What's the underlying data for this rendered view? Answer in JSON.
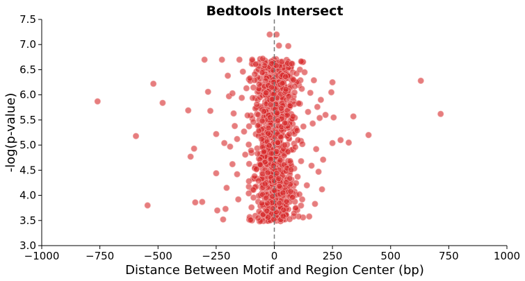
{
  "chart_data": {
    "type": "scatter",
    "title": "Bedtools Intersect",
    "xlabel": "Distance Between Motif and Region Center (bp)",
    "ylabel": "-log(p-value)",
    "xlim": [
      -1000,
      1000
    ],
    "ylim": [
      3.0,
      7.5
    ],
    "xticks": [
      -1000,
      -750,
      -500,
      -250,
      0,
      250,
      500,
      750,
      1000
    ],
    "xtick_labels": [
      "−1000",
      "−750",
      "−500",
      "−250",
      "0",
      "250",
      "500",
      "750",
      "1000"
    ],
    "yticks": [
      3.0,
      3.5,
      4.0,
      4.5,
      5.0,
      5.5,
      6.0,
      6.5,
      7.0,
      7.5
    ],
    "ytick_labels": [
      "3.0",
      "3.5",
      "4.0",
      "4.5",
      "5.0",
      "5.5",
      "6.0",
      "6.5",
      "7.0",
      "7.5"
    ],
    "reference_line": {
      "x": 0,
      "style": "dashed",
      "color": "#777777"
    },
    "grid": false,
    "marker_color": "#d62728",
    "marker_edge_color": "#f0a0a0",
    "marker_opacity": 0.6,
    "series": [
      {
        "points": [
          [
            -760,
            5.87
          ],
          [
            -595,
            5.18
          ],
          [
            -545,
            3.8
          ],
          [
            -520,
            6.22
          ],
          [
            -480,
            5.84
          ],
          [
            -370,
            5.69
          ],
          [
            -360,
            4.77
          ],
          [
            -345,
            4.93
          ],
          [
            -340,
            3.86
          ],
          [
            -310,
            3.87
          ],
          [
            -300,
            6.7
          ],
          [
            -285,
            6.06
          ],
          [
            -275,
            5.68
          ],
          [
            -250,
            5.22
          ],
          [
            -250,
            4.44
          ],
          [
            -245,
            3.7
          ],
          [
            -225,
            6.7
          ],
          [
            -220,
            3.52
          ],
          [
            -215,
            5.04
          ],
          [
            -210,
            3.73
          ],
          [
            -205,
            4.15
          ],
          [
            -200,
            6.38
          ],
          [
            -195,
            5.97
          ],
          [
            -190,
            4.97
          ],
          [
            -180,
            4.62
          ],
          [
            -180,
            6.03
          ],
          [
            -175,
            5.63
          ],
          [
            -170,
            5.38
          ],
          [
            -160,
            5.12
          ],
          [
            -160,
            4.42
          ],
          [
            -155,
            3.92
          ],
          [
            -150,
            6.7
          ],
          [
            -140,
            5.94
          ],
          [
            -135,
            6.46
          ],
          [
            -130,
            5.27
          ],
          [
            -125,
            4.81
          ],
          [
            -120,
            6.13
          ],
          [
            -115,
            5.59
          ],
          [
            -110,
            4.04
          ],
          [
            -105,
            6.33
          ],
          [
            -100,
            4.89
          ],
          [
            -95,
            6.7
          ],
          [
            -90,
            5.46
          ],
          [
            -85,
            4.38
          ],
          [
            -80,
            6.61
          ],
          [
            -75,
            5.81
          ],
          [
            -70,
            3.55
          ],
          [
            -65,
            6.21
          ],
          [
            -60,
            4.61
          ],
          [
            -55,
            5.12
          ],
          [
            -50,
            6.72
          ],
          [
            -45,
            5.67
          ],
          [
            -40,
            4.23
          ],
          [
            -35,
            6.04
          ],
          [
            -30,
            3.84
          ],
          [
            -25,
            5.34
          ],
          [
            -20,
            7.2
          ],
          [
            -15,
            4.72
          ],
          [
            -10,
            5.91
          ],
          [
            -5,
            6.49
          ],
          [
            10,
            7.2
          ],
          [
            15,
            5.05
          ],
          [
            20,
            6.98
          ],
          [
            25,
            4.26
          ],
          [
            30,
            5.73
          ],
          [
            35,
            6.39
          ],
          [
            40,
            3.71
          ],
          [
            45,
            5.44
          ],
          [
            50,
            6.11
          ],
          [
            55,
            4.54
          ],
          [
            60,
            6.97
          ],
          [
            65,
            5.22
          ],
          [
            70,
            4.08
          ],
          [
            75,
            6.62
          ],
          [
            80,
            5.57
          ],
          [
            85,
            3.64
          ],
          [
            90,
            4.96
          ],
          [
            95,
            6.25
          ],
          [
            100,
            4.37
          ],
          [
            105,
            5.83
          ],
          [
            110,
            6.5
          ],
          [
            115,
            4.68
          ],
          [
            120,
            3.92
          ],
          [
            125,
            5.37
          ],
          [
            130,
            6.45
          ],
          [
            140,
            4.2
          ],
          [
            145,
            5.66
          ],
          [
            150,
            3.58
          ],
          [
            155,
            6.04
          ],
          [
            160,
            4.59
          ],
          [
            165,
            5.43
          ],
          [
            170,
            6.29
          ],
          [
            175,
            3.83
          ],
          [
            180,
            4.92
          ],
          [
            185,
            5.76
          ],
          [
            190,
            4.47
          ],
          [
            195,
            5.54
          ],
          [
            200,
            5.9
          ],
          [
            205,
            4.12
          ],
          [
            210,
            4.71
          ],
          [
            220,
            5.6
          ],
          [
            245,
            6.05
          ],
          [
            250,
            6.25
          ],
          [
            250,
            5.04
          ],
          [
            255,
            5.55
          ],
          [
            285,
            5.1
          ],
          [
            320,
            5.05
          ],
          [
            340,
            5.57
          ],
          [
            405,
            5.2
          ],
          [
            630,
            6.28
          ],
          [
            715,
            5.62
          ],
          [
            -90,
            4.11
          ],
          [
            -72,
            4.83
          ],
          [
            -62,
            5.95
          ],
          [
            -48,
            3.62
          ],
          [
            -38,
            6.28
          ],
          [
            -28,
            4.45
          ],
          [
            -18,
            5.55
          ],
          [
            -8,
            3.98
          ],
          [
            8,
            6.58
          ],
          [
            18,
            4.33
          ],
          [
            28,
            5.16
          ],
          [
            38,
            3.59
          ],
          [
            48,
            6.36
          ],
          [
            58,
            4.87
          ],
          [
            68,
            5.78
          ],
          [
            78,
            3.96
          ],
          [
            88,
            6.17
          ],
          [
            98,
            5.29
          ],
          [
            108,
            4.02
          ],
          [
            118,
            6.12
          ],
          [
            -110,
            5.01
          ],
          [
            -98,
            3.76
          ],
          [
            -84,
            6.41
          ],
          [
            -68,
            4.29
          ],
          [
            -52,
            5.48
          ],
          [
            -42,
            6.58
          ],
          [
            -32,
            3.69
          ],
          [
            -22,
            4.99
          ],
          [
            -12,
            6.15
          ],
          [
            -2,
            3.52
          ],
          [
            12,
            5.64
          ],
          [
            22,
            4.18
          ],
          [
            32,
            6.66
          ],
          [
            42,
            4.79
          ],
          [
            52,
            3.88
          ],
          [
            62,
            5.97
          ],
          [
            72,
            4.51
          ],
          [
            82,
            6.3
          ],
          [
            92,
            3.75
          ],
          [
            102,
            5.1
          ]
        ]
      }
    ],
    "dense_cluster": {
      "x_center": 0,
      "x_spread": 45,
      "x_min": -110,
      "x_max": 130,
      "y_min": 3.48,
      "y_max": 6.72,
      "count": 850
    }
  }
}
